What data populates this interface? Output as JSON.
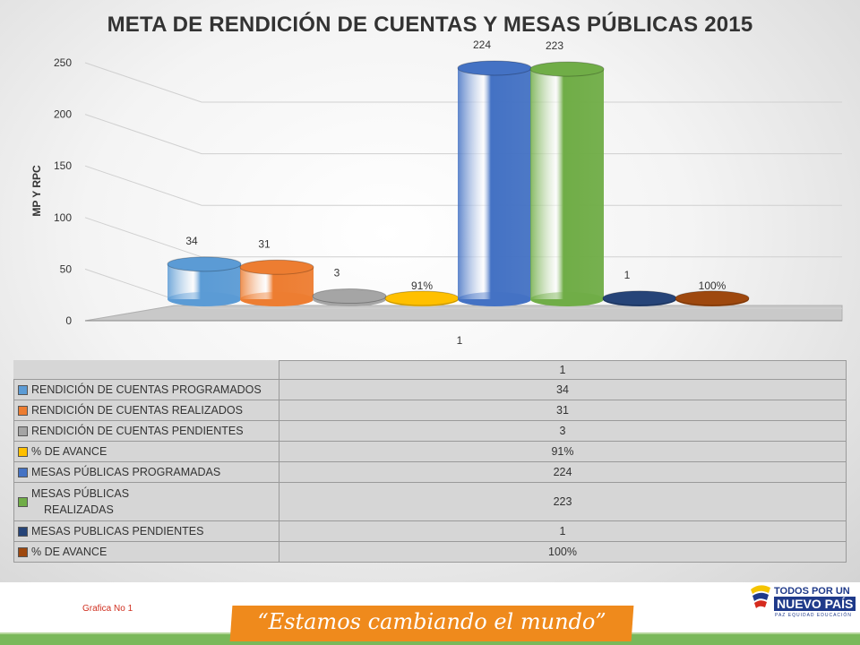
{
  "slide": {
    "title": "META DE RENDICIÓN DE CUENTAS Y MESAS PÚBLICAS  2015",
    "caption": "Grafica No 1",
    "slogan": "“Estamos cambiando el mundo”",
    "logo": {
      "line1": "TODOS POR UN",
      "line2": "NUEVO PAÍS",
      "line3": "PAZ EQUIDAD EDUCACIÓN"
    }
  },
  "chart_data": {
    "type": "bar",
    "title": "META DE RENDICIÓN DE CUENTAS Y MESAS PÚBLICAS  2015",
    "ylabel": "MP Y RPC",
    "xlabel": "",
    "categories": [
      "1"
    ],
    "ylim": [
      0,
      250
    ],
    "yticks": [
      "0",
      "50",
      "100",
      "150",
      "200",
      "250"
    ],
    "grid": true,
    "legend": "table-below",
    "series": [
      {
        "name": "RENDICIÓN DE CUENTAS  PROGRAMADOS",
        "value": 34,
        "label": "34",
        "color": "#5b9bd5"
      },
      {
        "name": "RENDICIÓN DE CUENTAS REALIZADOS",
        "value": 31,
        "label": "31",
        "color": "#ed7d31"
      },
      {
        "name": "RENDICIÓN DE CUENTAS  PENDIENTES",
        "value": 3,
        "label": "3",
        "color": "#a5a5a5"
      },
      {
        "name": "% DE AVANCE",
        "value": 0.91,
        "label": "91%",
        "color": "#ffc000"
      },
      {
        "name": " MESAS PÚBLICAS PROGRAMADAS",
        "value": 224,
        "label": "224",
        "color": "#4472c4"
      },
      {
        "name": "MESAS PÚBLICAS REALIZADAS",
        "value": 223,
        "label": "223",
        "color": "#70ad47"
      },
      {
        "name": "MESAS PUBLICAS PENDIENTES",
        "value": 1,
        "label": "1",
        "color": "#264478"
      },
      {
        "name": "% DE AVANCE",
        "value": 1.0,
        "label": "100%",
        "color": "#9e480e"
      }
    ]
  },
  "table": {
    "header": "1",
    "rows": [
      {
        "label": "RENDICIÓN DE CUENTAS  PROGRAMADOS",
        "value": "34"
      },
      {
        "label": "RENDICIÓN DE CUENTAS REALIZADOS",
        "value": "31"
      },
      {
        "label": "RENDICIÓN DE CUENTAS  PENDIENTES",
        "value": "3"
      },
      {
        "label": "% DE AVANCE",
        "value": "91%"
      },
      {
        "label": " MESAS PÚBLICAS PROGRAMADAS",
        "value": "224"
      },
      {
        "label": "MESAS PÚBLICAS",
        "label2": "REALIZADAS",
        "value": "223"
      },
      {
        "label": "MESAS PUBLICAS PENDIENTES",
        "value": "1"
      },
      {
        "label": "% DE AVANCE",
        "value": "100%"
      }
    ]
  }
}
